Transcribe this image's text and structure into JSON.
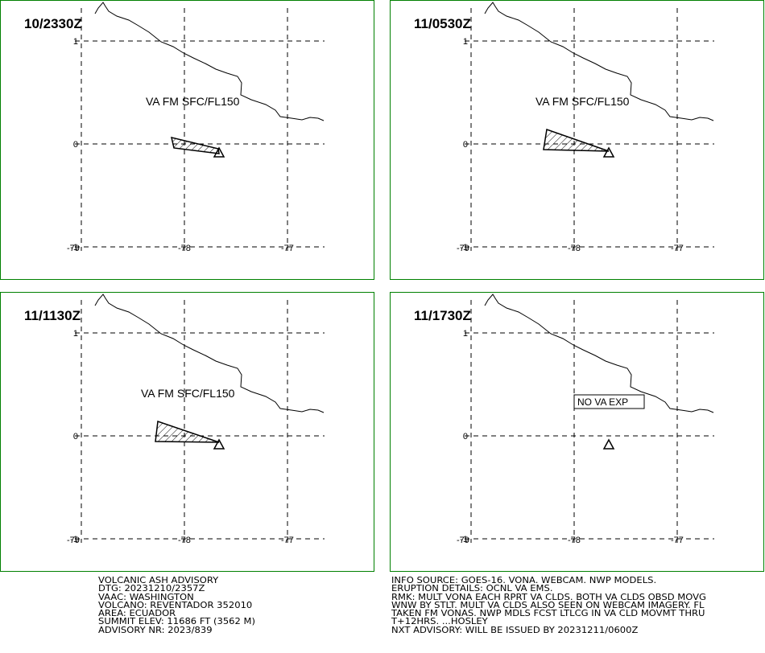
{
  "grid": {
    "lat_labels": [
      "1",
      "0",
      "-1"
    ],
    "lon_labels": [
      "-79",
      "-78",
      "-77"
    ]
  },
  "panels": [
    {
      "time": "10/2330Z",
      "annotation": "VA FM SFC/FL150"
    },
    {
      "time": "11/0530Z",
      "annotation": "VA FM SFC/FL150"
    },
    {
      "time": "11/1130Z",
      "annotation": "VA FM SFC/FL150"
    },
    {
      "time": "11/1730Z",
      "annotation": "NO VA EXP"
    }
  ],
  "advisory": {
    "lines": [
      "VOLCANIC ASH ADVISORY",
      "DTG: 20231210/2357Z",
      "VAAC: WASHINGTON",
      "VOLCANO: REVENTADOR 352010",
      "AREA: ECUADOR",
      "SUMMIT ELEV: 11686 FT (3562 M)",
      "ADVISORY NR: 2023/839"
    ]
  },
  "details": {
    "lines": [
      "INFO SOURCE: GOES-16. VONA. WEBCAM. NWP MODELS.",
      "ERUPTION DETAILS: OCNL VA EMS.",
      "RMK: MULT VONA EACH RPRT VA CLDS. BOTH VA CLDS OBSD MOVG",
      "WNW BY STLT. MULT VA CLDS ALSO SEEN ON WEBCAM IMAGERY. FL",
      "TAKEN FM VONAS. NWP MDLS FCST LTLCG IN VA CLD MOVMT THRU",
      "T+12HRS. ...HOSLEY",
      "NXT ADVISORY: WILL BE ISSUED BY 20231211/0600Z"
    ]
  }
}
